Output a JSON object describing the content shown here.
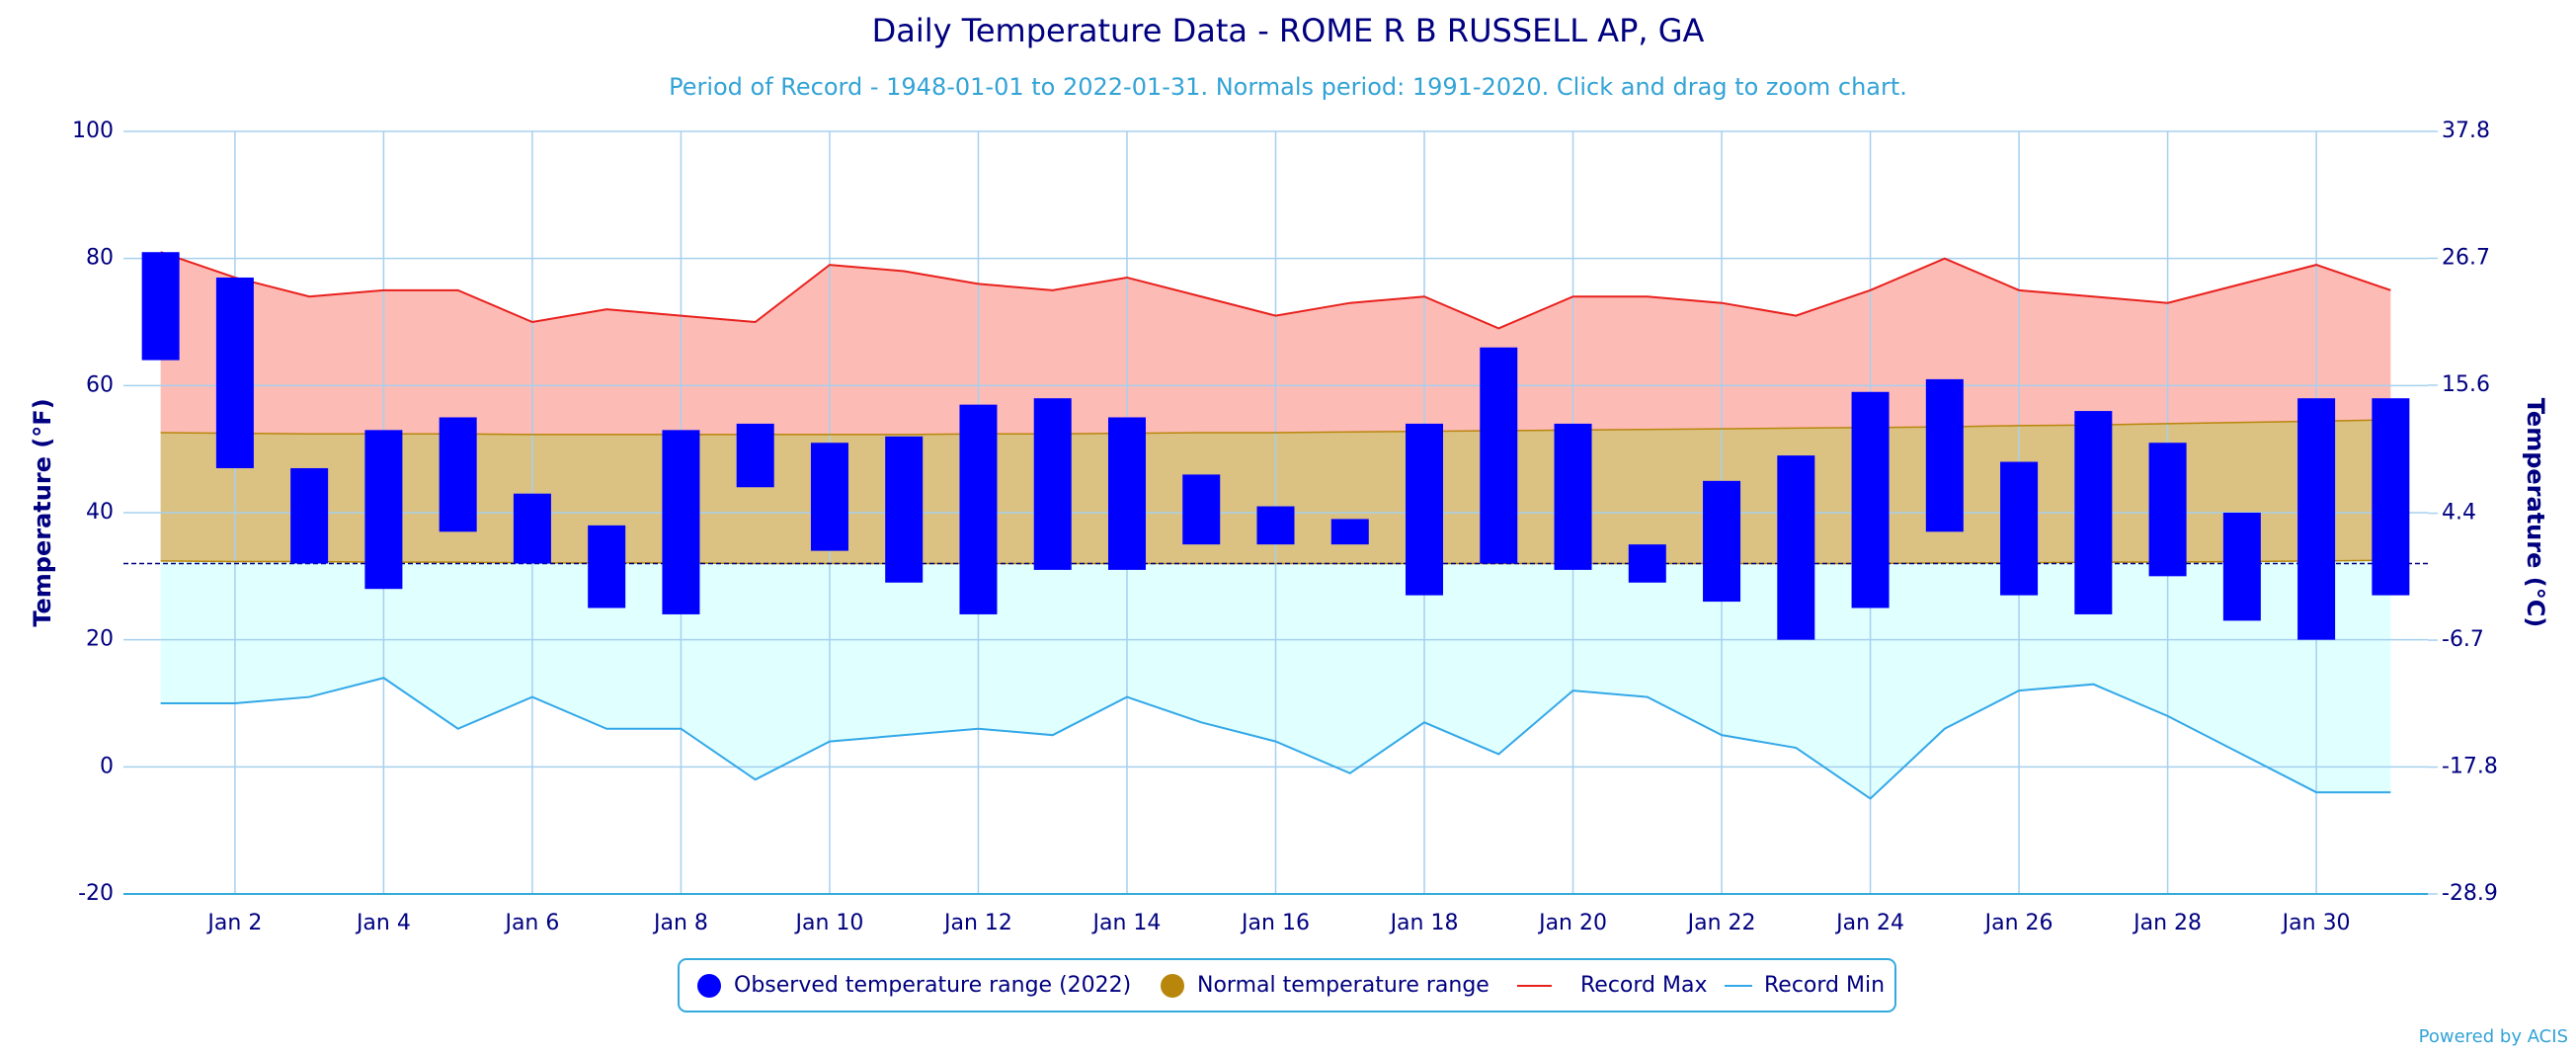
{
  "chart_data": {
    "type": "range",
    "title": "Daily Temperature Data - ROME R B RUSSELL AP, GA",
    "subtitle": "Period of Record - 1948-01-01 to 2022-01-31. Normals period: 1991-2020. Click and drag to zoom chart.",
    "ylabel": "Temperature (°F)",
    "y2label": "Temperature (°C)",
    "categories": [
      null,
      "Jan 2",
      null,
      "Jan 4",
      null,
      "Jan 6",
      null,
      "Jan 8",
      null,
      "Jan 10",
      null,
      "Jan 12",
      null,
      "Jan 14",
      null,
      "Jan 16",
      null,
      "Jan 18",
      null,
      "Jan 20",
      null,
      "Jan 22",
      null,
      "Jan 24",
      null,
      "Jan 26",
      null,
      "Jan 28",
      null,
      "Jan 30",
      null
    ],
    "series": [
      {
        "name": "Observed temperature range (2022)",
        "color": "#0000ff",
        "high": [
          81,
          77,
          47,
          53,
          55,
          43,
          38,
          53,
          54,
          51,
          52,
          57,
          58,
          55,
          46,
          41,
          39,
          54,
          66,
          54,
          35,
          45,
          49,
          59,
          61,
          48,
          56,
          51,
          40,
          58,
          58
        ],
        "low": [
          64,
          47,
          32,
          28,
          37,
          32,
          25,
          24,
          44,
          34,
          29,
          24,
          31,
          31,
          35,
          35,
          35,
          27,
          32,
          31,
          29,
          26,
          20,
          25,
          37,
          27,
          24,
          30,
          23,
          20,
          27
        ]
      },
      {
        "name": "Normal temperature range",
        "color": "#b8860b",
        "fill": "#dbc283",
        "high": [
          52.6,
          52.5,
          52.4,
          52.4,
          52.4,
          52.3,
          52.3,
          52.3,
          52.3,
          52.3,
          52.3,
          52.4,
          52.4,
          52.5,
          52.6,
          52.6,
          52.7,
          52.8,
          52.9,
          53.0,
          53.1,
          53.2,
          53.3,
          53.4,
          53.5,
          53.7,
          53.8,
          54.0,
          54.2,
          54.4,
          54.6
        ],
        "low": [
          32.4,
          32.3,
          32.3,
          32.2,
          32.2,
          32.1,
          32.1,
          32.1,
          32.0,
          32.0,
          32.0,
          32.0,
          32.0,
          32.0,
          32.0,
          32.0,
          32.0,
          32.0,
          32.0,
          32.0,
          32.0,
          32.0,
          32.0,
          32.0,
          32.1,
          32.1,
          32.2,
          32.2,
          32.3,
          32.4,
          32.5
        ]
      },
      {
        "name": "Record Max",
        "color": "#e8201c",
        "fill": "#fdbbb6",
        "values": [
          81,
          77,
          74,
          75,
          75,
          70,
          72,
          71,
          70,
          79,
          78,
          76,
          75,
          77,
          74,
          71,
          73,
          74,
          69,
          74,
          74,
          73,
          71,
          75,
          80,
          75,
          74,
          73,
          76,
          79,
          75
        ]
      },
      {
        "name": "Record Min",
        "color": "#33a8e8",
        "fill": "#e0ffff",
        "values": [
          10,
          10,
          11,
          14,
          6,
          11,
          6,
          6,
          -2,
          4,
          5,
          6,
          5,
          11,
          7,
          4,
          -1,
          7,
          2,
          12,
          11,
          5,
          3,
          -5,
          6,
          12,
          13,
          8,
          2,
          -4,
          -4
        ]
      }
    ],
    "reference_line": {
      "value": 32,
      "color": "#000080"
    },
    "ylim": [
      -20,
      100
    ],
    "yticks": [
      -20,
      0,
      20,
      40,
      60,
      80,
      100
    ],
    "y2lim": [
      -28.9,
      37.8
    ],
    "y2ticks": [
      -28.9,
      -17.8,
      -6.7,
      4.4,
      15.6,
      26.7,
      37.8
    ],
    "grid": true,
    "legend": "bottom",
    "footer": "Powered by ACIS"
  }
}
